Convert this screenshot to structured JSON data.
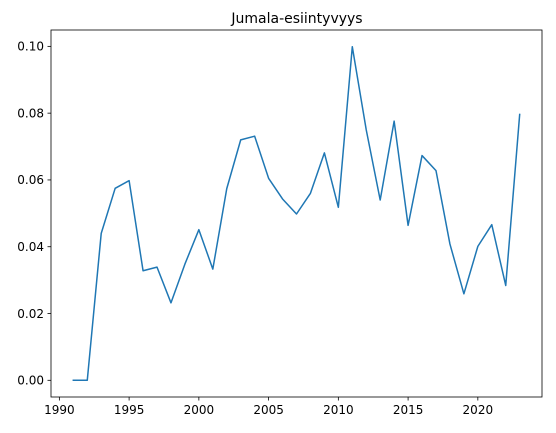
{
  "chart_data": {
    "type": "line",
    "title": "Jumala-esiintyvyys",
    "xlabel": "",
    "ylabel": "",
    "x": [
      1991,
      1992,
      1993,
      1994,
      1995,
      1996,
      1997,
      1998,
      1999,
      2000,
      2001,
      2002,
      2003,
      2004,
      2005,
      2006,
      2007,
      2008,
      2009,
      2010,
      2011,
      2012,
      2013,
      2014,
      2015,
      2016,
      2017,
      2018,
      2019,
      2020,
      2021,
      2022,
      2023
    ],
    "series": [
      {
        "values": [
          0.0,
          0.0,
          0.044,
          0.0575,
          0.0598,
          0.0328,
          0.0339,
          0.0232,
          0.0348,
          0.0451,
          0.0333,
          0.0574,
          0.072,
          0.0731,
          0.0605,
          0.0543,
          0.0498,
          0.056,
          0.0681,
          0.0518,
          0.0999,
          0.075,
          0.054,
          0.0776,
          0.0464,
          0.0673,
          0.0628,
          0.0408,
          0.0259,
          0.0401,
          0.0466,
          0.0284,
          0.0796
        ],
        "color": "#1f77b4"
      }
    ],
    "xlim": [
      1989.4,
      2024.6
    ],
    "ylim": [
      -0.005,
      0.1049
    ],
    "xticks": [
      "1990",
      "1995",
      "2000",
      "2005",
      "2010",
      "2015",
      "2020"
    ],
    "yticks": [
      "0.00",
      "0.02",
      "0.04",
      "0.06",
      "0.08",
      "0.10"
    ],
    "grid": false,
    "legend": "none"
  }
}
